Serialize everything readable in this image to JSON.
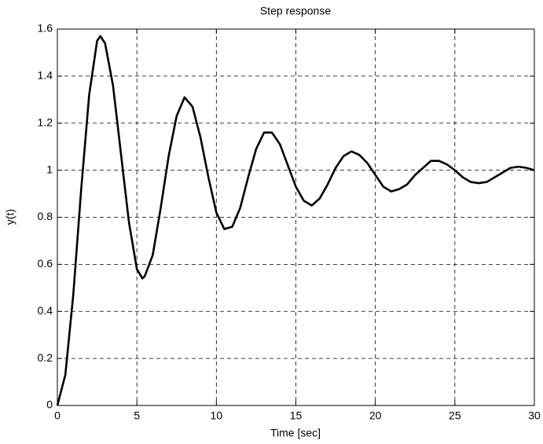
{
  "chart_data": {
    "type": "line",
    "title": "Step response",
    "x_label": "Time [sec]",
    "y_label": "y(t)",
    "x": [
      0,
      0.5,
      1,
      1.5,
      2,
      2.5,
      2.7,
      3,
      3.5,
      4,
      4.5,
      5,
      5.35,
      5.5,
      6,
      6.5,
      7,
      7.5,
      8,
      8.5,
      9,
      9.5,
      10,
      10.5,
      11,
      11.5,
      12,
      12.5,
      13,
      13.5,
      14,
      14.5,
      15,
      15.5,
      16,
      16.5,
      17,
      17.5,
      18,
      18.5,
      19,
      19.5,
      20,
      20.5,
      21,
      21.5,
      22,
      22.5,
      23,
      23.5,
      24,
      24.5,
      25,
      25.5,
      26,
      26.5,
      27,
      27.5,
      28,
      28.5,
      29,
      29.5,
      30
    ],
    "series": [
      {
        "name": "y(t)",
        "color": "#000000",
        "values": [
          0,
          0.13,
          0.47,
          0.92,
          1.32,
          1.55,
          1.57,
          1.54,
          1.36,
          1.07,
          0.78,
          0.58,
          0.54,
          0.55,
          0.64,
          0.84,
          1.06,
          1.23,
          1.31,
          1.27,
          1.14,
          0.97,
          0.82,
          0.75,
          0.76,
          0.84,
          0.97,
          1.09,
          1.16,
          1.16,
          1.11,
          1.02,
          0.93,
          0.87,
          0.85,
          0.88,
          0.94,
          1.01,
          1.06,
          1.08,
          1.065,
          1.03,
          0.98,
          0.93,
          0.91,
          0.92,
          0.94,
          0.98,
          1.01,
          1.04,
          1.04,
          1.025,
          1.0,
          0.97,
          0.95,
          0.945,
          0.95,
          0.97,
          0.99,
          1.01,
          1.015,
          1.01,
          1.0
        ]
      }
    ],
    "xlim": [
      0,
      30
    ],
    "xticks": [
      0,
      5,
      10,
      15,
      20,
      25,
      30
    ],
    "ylim": [
      0,
      1.6
    ],
    "yticks": [
      0,
      0.2,
      0.4,
      0.6,
      0.8,
      1,
      1.2,
      1.4,
      1.6
    ],
    "grid": true
  }
}
